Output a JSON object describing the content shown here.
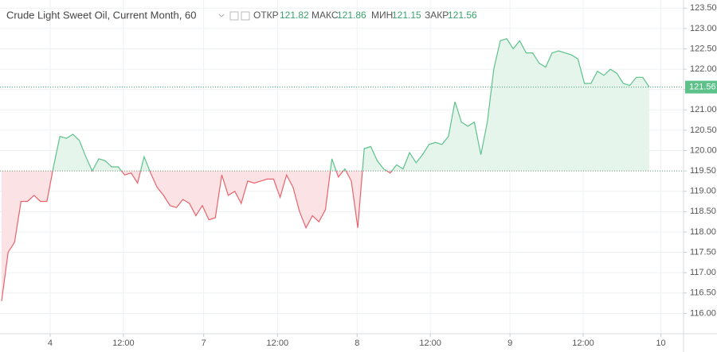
{
  "header": {
    "title": "Crude Light Sweet Oil, Current Month, 60",
    "open_label": "ОТКР",
    "open": 121.82,
    "high_label": "МАКС",
    "high": 121.86,
    "low_label": "МИН",
    "low": 121.15,
    "close_label": "ЗАКР",
    "close": 121.56
  },
  "chart_data": {
    "type": "line",
    "x": [
      0,
      1,
      2,
      3,
      4,
      5,
      6,
      7,
      8,
      9,
      10,
      11,
      12,
      13,
      14,
      15,
      16,
      17,
      18,
      19,
      20,
      21,
      22,
      23,
      24,
      25,
      26,
      27,
      28,
      29,
      30,
      31,
      32,
      33,
      34,
      35,
      36,
      37,
      38,
      39,
      40,
      41,
      42,
      43,
      44,
      45,
      46,
      47,
      48,
      49,
      50,
      51,
      52,
      53,
      54,
      55,
      56,
      57,
      58,
      59,
      60,
      61,
      62,
      63,
      64,
      65,
      66,
      67,
      68,
      69,
      70,
      71,
      72,
      73,
      74,
      75,
      76,
      77,
      78,
      79,
      80,
      81,
      82,
      83,
      84,
      85,
      86,
      87,
      88,
      89,
      90,
      91,
      92,
      93,
      94,
      95,
      96,
      97,
      98,
      99,
      100
    ],
    "values": [
      116.3,
      117.5,
      117.75,
      118.75,
      118.75,
      118.9,
      118.75,
      118.75,
      119.6,
      120.35,
      120.3,
      120.4,
      120.25,
      119.85,
      119.5,
      119.8,
      119.75,
      119.6,
      119.6,
      119.4,
      119.45,
      119.2,
      119.85,
      119.45,
      119.1,
      118.9,
      118.65,
      118.6,
      118.8,
      118.7,
      118.4,
      118.65,
      118.3,
      118.35,
      119.4,
      118.9,
      119.0,
      118.7,
      119.25,
      119.2,
      119.25,
      119.3,
      119.3,
      118.85,
      119.4,
      119.1,
      118.5,
      118.1,
      118.4,
      118.25,
      118.55,
      119.8,
      119.35,
      119.55,
      119.25,
      118.1,
      120.05,
      120.1,
      119.75,
      119.55,
      119.45,
      119.65,
      119.55,
      119.95,
      119.7,
      119.9,
      120.15,
      120.2,
      120.15,
      120.35,
      121.2,
      120.7,
      120.6,
      120.7,
      119.9,
      120.7,
      122.0,
      122.7,
      122.75,
      122.5,
      122.7,
      122.4,
      122.4,
      122.15,
      122.05,
      122.4,
      122.45,
      122.4,
      122.35,
      122.25,
      121.65,
      121.65,
      121.95,
      121.85,
      122.0,
      121.9,
      121.65,
      121.6,
      121.8,
      121.8,
      121.56
    ],
    "xlim": [
      -0.25,
      105.3
    ],
    "xticks": [
      {
        "value": 7.5,
        "label": "4"
      },
      {
        "value": 18.8,
        "label": "12:00"
      },
      {
        "value": 31.2,
        "label": "7"
      },
      {
        "value": 42.6,
        "label": "12:00"
      },
      {
        "value": 54.9,
        "label": "8"
      },
      {
        "value": 66.2,
        "label": "12:00"
      },
      {
        "value": 78.5,
        "label": "9"
      },
      {
        "value": 89.8,
        "label": "12:00"
      },
      {
        "value": 101.8,
        "label": "10"
      }
    ],
    "ylim": [
      115.5,
      123.7
    ],
    "yticks": [
      {
        "value": 116,
        "label": "116.00"
      },
      {
        "value": 116.5,
        "label": "116.50"
      },
      {
        "value": 117,
        "label": "117.00"
      },
      {
        "value": 117.5,
        "label": "117.50"
      },
      {
        "value": 118,
        "label": "118.00"
      },
      {
        "value": 118.5,
        "label": "118.50"
      },
      {
        "value": 119,
        "label": "119.00"
      },
      {
        "value": 119.5,
        "label": "119.50"
      },
      {
        "value": 120,
        "label": "120.00"
      },
      {
        "value": 120.5,
        "label": "120.50"
      },
      {
        "value": 121,
        "label": "121.00"
      },
      {
        "value": 121.5,
        "label": "121.50"
      },
      {
        "value": 122,
        "label": "122.00"
      },
      {
        "value": 122.5,
        "label": "122.50"
      },
      {
        "value": 123,
        "label": "123.00"
      },
      {
        "value": 123.5,
        "label": "123.50"
      }
    ],
    "reference_line": 119.5,
    "last_price": 121.56,
    "up_color": "#5cc28a",
    "down_color": "#e8636c",
    "up_fill": "#e6f5ec",
    "down_fill": "#fbe2e4",
    "grid": true
  }
}
